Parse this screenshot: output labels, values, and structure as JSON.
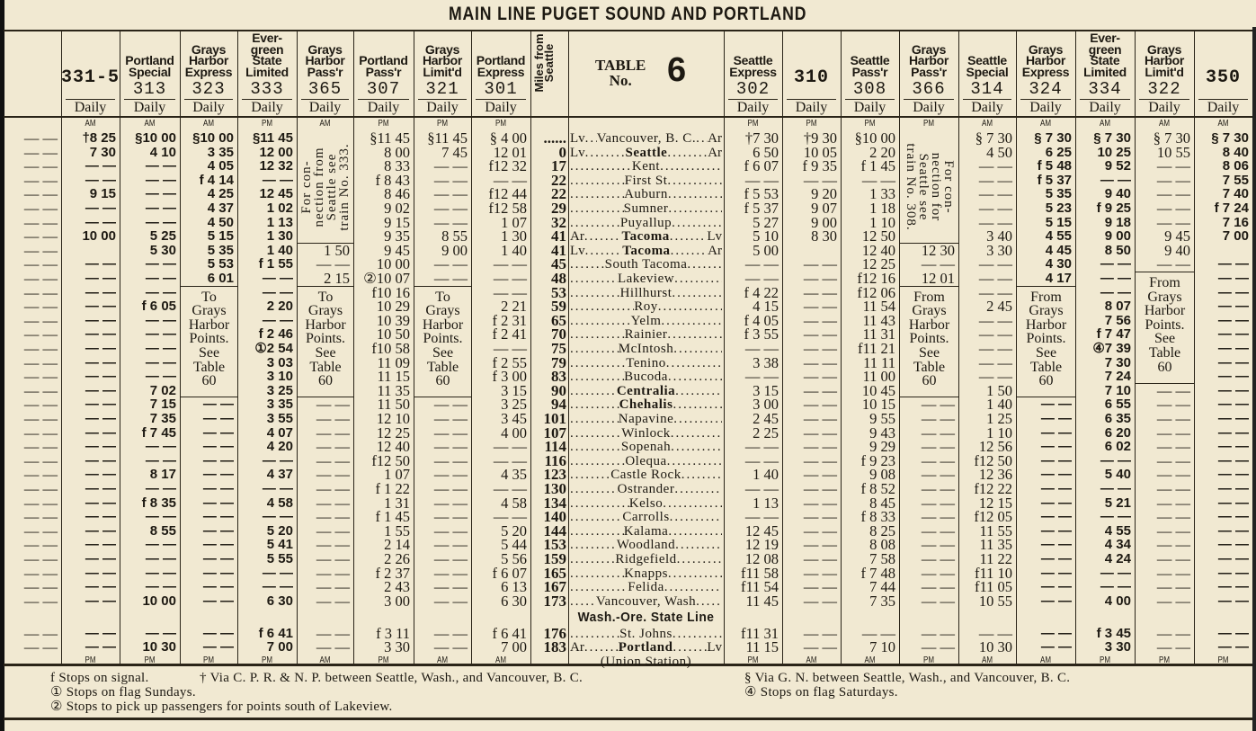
{
  "title": "MAIN LINE PUGET SOUND AND PORTLAND",
  "table_label": {
    "line1": "TABLE",
    "line2": "No.",
    "number": "6"
  },
  "miles_header": "Miles from Seattle",
  "left_trains": [
    {
      "number": "",
      "name_lines": [],
      "days": "",
      "top_marker": "",
      "bottom_marker": "",
      "cells": [
        "— —",
        "— —",
        "— —",
        "— —",
        "— —",
        "— —",
        "— —",
        "— —",
        "— —",
        "— —",
        "— —",
        "— —",
        "— —",
        "— —",
        "— —",
        "— —",
        "— —",
        "— —",
        "— —",
        "— —",
        "— —",
        "— —",
        "— —",
        "— —",
        "— —",
        "— —",
        "— —",
        "— —",
        "— —",
        "— —",
        "— —",
        "— —",
        "— —",
        "— —",
        "",
        "— —",
        "— —"
      ]
    },
    {
      "number": "331-5",
      "name_lines": [],
      "days": "Daily",
      "top_marker": "AM",
      "bottom_marker": "PM",
      "cells": [
        "†8 25",
        "7 30",
        "— —",
        "— —",
        "9 15",
        "— —",
        "— —",
        "10 00",
        "",
        "— —",
        "— —",
        "— —",
        "— —",
        "— —",
        "— —",
        "— —",
        "— —",
        "— —",
        "— —",
        "— —",
        "— —",
        "— —",
        "— —",
        "— —",
        "— —",
        "— —",
        "— —",
        "— —",
        "— —",
        "— —",
        "— —",
        "— —",
        "— —",
        "— —",
        "",
        "— —",
        "— —"
      ]
    },
    {
      "number": "313",
      "name_lines": [
        "Portland",
        "Special"
      ],
      "days": "Daily",
      "top_marker": "AM",
      "bottom_marker": "PM",
      "cells": [
        "§10 00",
        "4 10",
        "— —",
        "— —",
        "— —",
        "— —",
        "— —",
        "5 25",
        "5 30",
        "— —",
        "— —",
        "— —",
        "f 6 05",
        "— —",
        "— —",
        "— —",
        "— —",
        "— —",
        "7 02",
        "7 15",
        "7 35",
        "f 7 45",
        "— —",
        "— —",
        "8 17",
        "— —",
        "f 8 35",
        "— —",
        "8 55",
        "— —",
        "— —",
        "— —",
        "— —",
        "10 00",
        "",
        "— —",
        "10 30"
      ]
    },
    {
      "number": "323",
      "name_lines": [
        "Grays",
        "Harbor",
        "Express"
      ],
      "days": "Daily",
      "top_marker": "AM",
      "bottom_marker": "PM",
      "cells": [
        "§10 00",
        "3 35",
        "4 05",
        "f 4 14",
        "4 25",
        "4 37",
        "4 50",
        "5 15",
        "5 35",
        "5 53",
        "6 01",
        {
          "note": [
            "To",
            "Grays",
            "Harbor",
            "Points.",
            "See",
            "Table",
            "60"
          ]
        },
        null,
        null,
        null,
        null,
        null,
        null,
        null,
        "— —",
        "— —",
        "— —",
        "— —",
        "— —",
        "— —",
        "— —",
        "— —",
        "— —",
        "— —",
        "— —",
        "— —",
        "— —",
        "— —",
        "— —",
        "",
        "— —",
        "— —"
      ]
    },
    {
      "number": "333",
      "name_lines": [
        "Ever-",
        "green",
        "State",
        "Limited"
      ],
      "days": "Daily",
      "top_marker": "PM",
      "bottom_marker": "PM",
      "cells": [
        "§11 45",
        "12 00",
        "12 32",
        "— —",
        "12 45",
        "1 02",
        "1 13",
        "1 30",
        "1 40",
        "f 1 55",
        "— —",
        "— —",
        "2 20",
        "— —",
        "f 2 46",
        "①2 54",
        "3 03",
        "3 10",
        "3 25",
        "3 35",
        "3 55",
        "4 07",
        "4 20",
        "— —",
        "4 37",
        "— —",
        "4 58",
        "— —",
        "5 20",
        "5 41",
        "5 55",
        "— —",
        "— —",
        "6 30",
        "",
        "f 6 41",
        "7 00"
      ]
    },
    {
      "number": "365",
      "name_lines": [
        "Grays",
        "Harbor",
        "Pass'r"
      ],
      "days": "Daily",
      "top_marker": "AM",
      "bottom_marker": "AM",
      "cells": [
        {
          "vnote": [
            "For con-",
            "nection from",
            "Seattle see",
            "train No. 333."
          ]
        },
        null,
        null,
        null,
        null,
        null,
        null,
        null,
        "1 50",
        "— —",
        "2 15",
        {
          "note": [
            "To",
            "Grays",
            "Harbor",
            "Points.",
            "See",
            "Table",
            "60"
          ]
        },
        null,
        null,
        null,
        null,
        null,
        null,
        null,
        "— —",
        "— —",
        "— —",
        "— —",
        "— —",
        "— —",
        "— —",
        "— —",
        "— —",
        "— —",
        "— —",
        "— —",
        "— —",
        "— —",
        "— —",
        "",
        "— —",
        "— —"
      ]
    },
    {
      "number": "307",
      "name_lines": [
        "Portland",
        "Pass'r"
      ],
      "days": "Daily",
      "top_marker": "PM",
      "bottom_marker": "PM",
      "cells": [
        "§11 45",
        "8 00",
        "8 33",
        "f 8 43",
        "8 46",
        "9 02",
        "9 15",
        "9 35",
        "9 45",
        "10 00",
        "②10 07",
        "f10 16",
        "10 29",
        "10 39",
        "10 50",
        "f10 58",
        "11 09",
        "11 15",
        "11 35",
        "11 50",
        "12 10",
        "12 25",
        "12 40",
        "f12 50",
        "1 07",
        "f 1 22",
        "1 31",
        "f 1 45",
        "1 55",
        "2 14",
        "2 26",
        "f 2 37",
        "2 43",
        "3 00",
        "",
        "f 3 11",
        "3 30"
      ]
    },
    {
      "number": "321",
      "name_lines": [
        "Grays",
        "Harbor",
        "Limit'd"
      ],
      "days": "Daily",
      "top_marker": "PM",
      "bottom_marker": "AM",
      "cells": [
        "§11 45",
        "7 45",
        "— —",
        "— —",
        "— —",
        "— —",
        "— —",
        "8 55",
        "9 00",
        "— —",
        "— —",
        {
          "note": [
            "To",
            "Grays",
            "Harbor",
            "Points.",
            "See",
            "Table",
            "60"
          ]
        },
        null,
        null,
        null,
        null,
        null,
        null,
        null,
        "— —",
        "— —",
        "— —",
        "— —",
        "— —",
        "— —",
        "— —",
        "— —",
        "— —",
        "— —",
        "— —",
        "— —",
        "— —",
        "— —",
        "— —",
        "",
        "— —",
        "— —"
      ]
    },
    {
      "number": "301",
      "name_lines": [
        "Portland",
        "Express"
      ],
      "days": "Daily",
      "top_marker": "PM",
      "bottom_marker": "AM",
      "cells": [
        "§ 4 00",
        "12 01",
        "f12 32",
        "— —",
        "f12 44",
        "f12 58",
        "1 07",
        "1 30",
        "1 40",
        "— —",
        "— —",
        "— —",
        "2 21",
        "f 2 31",
        "f 2 41",
        "— —",
        "f 2 55",
        "f 3 00",
        "3 15",
        "3 25",
        "3 45",
        "4 00",
        "— —",
        "— —",
        "4 35",
        "— —",
        "4 58",
        "— —",
        "5 20",
        "5 44",
        "5 56",
        "f 6 07",
        "6 13",
        "6 30",
        "",
        "f 6 41",
        "7 00"
      ]
    }
  ],
  "right_trains": [
    {
      "number": "302",
      "name_lines": [
        "Seattle",
        "Express"
      ],
      "days": "Daily",
      "top_marker": "PM",
      "bottom_marker": "PM",
      "cells": [
        "†7 30",
        "6 50",
        "f 6 07",
        "— —",
        "f 5 53",
        "f 5 37",
        "5 27",
        "5 10",
        "5 00",
        "— —",
        "— —",
        "f 4 22",
        "4 15",
        "f 4 05",
        "f 3 55",
        "— —",
        "3 38",
        "— —",
        "3 15",
        "3 00",
        "2 45",
        "2 25",
        "— —",
        "— —",
        "1 40",
        "— —",
        "1 13",
        "— —",
        "12 45",
        "12 19",
        "12 08",
        "f11 58",
        "f11 54",
        "11 45",
        "",
        "f11 31",
        "11 15"
      ]
    },
    {
      "number": "310",
      "name_lines": [],
      "days": "Daily",
      "top_marker": "PM",
      "bottom_marker": "AM",
      "cells": [
        "†9 30",
        "10 05",
        "f 9 35",
        "— —",
        "9 20",
        "9 07",
        "9 00",
        "8 30",
        "",
        "— —",
        "— —",
        "— —",
        "— —",
        "— —",
        "— —",
        "— —",
        "— —",
        "— —",
        "— —",
        "— —",
        "— —",
        "— —",
        "— —",
        "— —",
        "— —",
        "— —",
        "— —",
        "— —",
        "— —",
        "— —",
        "— —",
        "— —",
        "— —",
        "— —",
        "",
        "— —",
        "— —"
      ]
    },
    {
      "number": "308",
      "name_lines": [
        "Seattle",
        "Pass'r"
      ],
      "days": "Daily",
      "top_marker": "PM",
      "bottom_marker": "AM",
      "cells": [
        "§10 00",
        "2 20",
        "f 1 45",
        "— —",
        "1 33",
        "1 18",
        "1 10",
        "12 50",
        "12 40",
        "12 25",
        "f12 16",
        "f12 06",
        "11 54",
        "11 43",
        "11 31",
        "f11 21",
        "11 11",
        "11 00",
        "10 45",
        "10 15",
        "9 55",
        "9 43",
        "9 29",
        "f 9 23",
        "9 08",
        "f 8 52",
        "8 45",
        "f 8 33",
        "8 25",
        "8 08",
        "7 58",
        "f 7 48",
        "7 44",
        "7 35",
        "",
        "— —",
        "7 10"
      ]
    },
    {
      "number": "366",
      "name_lines": [
        "Grays",
        "Harbor",
        "Pass'r"
      ],
      "days": "Daily",
      "top_marker": "PM",
      "bottom_marker": "PM",
      "cells": [
        {
          "vnote": [
            "For con-",
            "nection for",
            "Seattle see",
            "train No. 308."
          ]
        },
        null,
        null,
        null,
        null,
        null,
        null,
        null,
        "12 30",
        "— —",
        "12 01",
        {
          "note": [
            "From",
            "Grays",
            "Harbor",
            "Points.",
            "See",
            "Table",
            "60"
          ]
        },
        null,
        null,
        null,
        null,
        null,
        null,
        null,
        "— —",
        "— —",
        "— —",
        "— —",
        "— —",
        "— —",
        "— —",
        "— —",
        "— —",
        "— —",
        "— —",
        "— —",
        "— —",
        "— —",
        "— —",
        "",
        "— —",
        "— —"
      ]
    },
    {
      "number": "314",
      "name_lines": [
        "Seattle",
        "Special"
      ],
      "days": "Daily",
      "top_marker": "AM",
      "bottom_marker": "AM",
      "cells": [
        "§ 7 30",
        "4 50",
        "— —",
        "— —",
        "— —",
        "— —",
        "— —",
        "3 40",
        "3 30",
        "— —",
        "— —",
        "— —",
        "2 45",
        "— —",
        "— —",
        "— —",
        "— —",
        "— —",
        "1 50",
        "1 40",
        "1 25",
        "1 10",
        "12 56",
        "f12 50",
        "12 36",
        "f12 22",
        "12 15",
        "f12 05",
        "11 55",
        "11 35",
        "11 22",
        "f11 10",
        "f11 05",
        "10 55",
        "",
        "— —",
        "10 30"
      ]
    },
    {
      "number": "324",
      "name_lines": [
        "Grays",
        "Harbor",
        "Express"
      ],
      "days": "Daily",
      "top_marker": "AM",
      "bottom_marker": "AM",
      "cells": [
        "§ 7 30",
        "6 25",
        "f 5 48",
        "f 5 37",
        "5 35",
        "5 23",
        "5 15",
        "4 55",
        "4 45",
        "4 30",
        "4 17",
        {
          "note": [
            "From",
            "Grays",
            "Harbor",
            "Points.",
            "See",
            "Table",
            "60"
          ]
        },
        null,
        null,
        null,
        null,
        null,
        null,
        null,
        "— —",
        "— —",
        "— —",
        "— —",
        "— —",
        "— —",
        "— —",
        "— —",
        "— —",
        "— —",
        "— —",
        "— —",
        "— —",
        "— —",
        "— —",
        "",
        "— —",
        "— —"
      ]
    },
    {
      "number": "334",
      "name_lines": [
        "Ever-",
        "green",
        "State",
        "Limited"
      ],
      "days": "Daily",
      "top_marker": "AM",
      "bottom_marker": "PM",
      "cells": [
        "§ 7 30",
        "10 25",
        "9 52",
        "— —",
        "9 40",
        "f 9 25",
        "9 18",
        "9 00",
        "8 50",
        "— —",
        "— —",
        "— —",
        "8 07",
        "7 56",
        "f 7 47",
        "④7 39",
        "7 30",
        "7 24",
        "7 10",
        "6 55",
        "6 35",
        "6 20",
        "6 02",
        "— —",
        "5 40",
        "— —",
        "5 21",
        "— —",
        "4 55",
        "4 34",
        "4 24",
        "— —",
        "— —",
        "4 00",
        "",
        "f 3 45",
        "3 30"
      ]
    },
    {
      "number": "322",
      "name_lines": [
        "Grays",
        "Harbor",
        "Limit'd"
      ],
      "days": "Daily",
      "top_marker": "AM",
      "bottom_marker": "PM",
      "cells": [
        "§ 7 30",
        "10 55",
        "— —",
        "— —",
        "— —",
        "— —",
        "— —",
        "9 45",
        "9 40",
        "— —",
        {
          "note": [
            "From",
            "Grays",
            "Harbor",
            "Points.",
            "See",
            "Table",
            "60"
          ]
        },
        null,
        null,
        null,
        null,
        null,
        null,
        null,
        "— —",
        "— —",
        "— —",
        "— —",
        "— —",
        "— —",
        "— —",
        "— —",
        "— —",
        "— —",
        "— —",
        "— —",
        "— —",
        "— —",
        "— —",
        "— —",
        "",
        "— —",
        "— —"
      ]
    },
    {
      "number": "350",
      "name_lines": [],
      "days": "Daily",
      "top_marker": "AM",
      "bottom_marker": "PM",
      "cells": [
        "§ 7 30",
        "8 40",
        "8 06",
        "7 55",
        "7 40",
        "f 7 24",
        "7 16",
        "7 00",
        "",
        "— —",
        "— —",
        "— —",
        "— —",
        "— —",
        "— —",
        "— —",
        "— —",
        "— —",
        "— —",
        "— —",
        "— —",
        "— —",
        "— —",
        "— —",
        "— —",
        "— —",
        "— —",
        "— —",
        "— —",
        "— —",
        "— —",
        "— —",
        "— —",
        "— —",
        "",
        "— —",
        "— —"
      ]
    }
  ],
  "stations": [
    {
      "mi": "......",
      "left": "Lv",
      "name": "Vancouver, B. C.",
      "right": "Ar"
    },
    {
      "mi": "0",
      "left": "Lv",
      "name": "Seattle",
      "right": "Ar",
      "bold": true
    },
    {
      "mi": "17",
      "left": "",
      "name": "Kent",
      "right": ""
    },
    {
      "mi": "22",
      "left": "",
      "name": "First St",
      "right": ""
    },
    {
      "mi": "22",
      "left": "",
      "name": "Auburn",
      "right": ""
    },
    {
      "mi": "29",
      "left": "",
      "name": "Sumner",
      "right": ""
    },
    {
      "mi": "32",
      "left": "",
      "name": "Puyallup",
      "right": ""
    },
    {
      "mi": "41",
      "left": "Ar",
      "name": "Tacoma",
      "right": "Lv",
      "bold": true
    },
    {
      "mi": "41",
      "left": "Lv",
      "name": "Tacoma",
      "right": "Ar",
      "bold": true
    },
    {
      "mi": "45",
      "left": "",
      "name": "South Tacoma",
      "right": ""
    },
    {
      "mi": "48",
      "left": "",
      "name": "Lakeview",
      "right": ""
    },
    {
      "mi": "53",
      "left": "",
      "name": "Hillhurst",
      "right": ""
    },
    {
      "mi": "59",
      "left": "",
      "name": "Roy",
      "right": ""
    },
    {
      "mi": "65",
      "left": "",
      "name": "Yelm",
      "right": ""
    },
    {
      "mi": "70",
      "left": "",
      "name": "Rainier",
      "right": ""
    },
    {
      "mi": "75",
      "left": "",
      "name": "McIntosh",
      "right": ""
    },
    {
      "mi": "79",
      "left": "",
      "name": "Tenino",
      "right": ""
    },
    {
      "mi": "83",
      "left": "",
      "name": "Bucoda",
      "right": ""
    },
    {
      "mi": "90",
      "left": "",
      "name": "Centralia",
      "right": "",
      "bold": true
    },
    {
      "mi": "94",
      "left": "",
      "name": "Chehalis",
      "right": "",
      "bold": true
    },
    {
      "mi": "101",
      "left": "",
      "name": "Napavine",
      "right": ""
    },
    {
      "mi": "107",
      "left": "",
      "name": "Winlock",
      "right": ""
    },
    {
      "mi": "114",
      "left": "",
      "name": "Sopenah",
      "right": ""
    },
    {
      "mi": "116",
      "left": "",
      "name": "Olequa",
      "right": ""
    },
    {
      "mi": "123",
      "left": "",
      "name": "Castle Rock",
      "right": ""
    },
    {
      "mi": "130",
      "left": "",
      "name": "Ostrander",
      "right": ""
    },
    {
      "mi": "134",
      "left": "",
      "name": "Kelso",
      "right": ""
    },
    {
      "mi": "140",
      "left": "",
      "name": "Carrolls",
      "right": ""
    },
    {
      "mi": "144",
      "left": "",
      "name": "Kalama",
      "right": ""
    },
    {
      "mi": "153",
      "left": "",
      "name": "Woodland",
      "right": ""
    },
    {
      "mi": "159",
      "left": "",
      "name": "Ridgefield",
      "right": ""
    },
    {
      "mi": "165",
      "left": "",
      "name": "Knapps",
      "right": ""
    },
    {
      "mi": "167",
      "left": "",
      "name": "Felida",
      "right": ""
    },
    {
      "mi": "173",
      "left": "",
      "name": "Vancouver, Wash",
      "right": ""
    },
    {
      "mi": "",
      "left": "",
      "name": "Wash.-Ore. State Line",
      "right": "",
      "full": true
    },
    {
      "mi": "176",
      "left": "",
      "name": "St. Johns",
      "right": ""
    },
    {
      "mi": "183",
      "left": "Ar",
      "name": "Portland",
      "right": "Lv",
      "bold": true
    },
    {
      "mi": "",
      "left": "",
      "name": "(Union Station)",
      "right": "",
      "center": true
    }
  ],
  "footnotes": {
    "f": "f Stops on signal.",
    "dagger": "† Via C. P. R. & N. P. between Seattle, Wash., and Vancouver, B. C.",
    "one": "① Stops on flag Sundays.",
    "two": "② Stops to pick up passengers for points south of Lakeview.",
    "section": "§ Via G. N. between Seattle, Wash., and Vancouver, B. C.",
    "four": "④ Stops on flag Saturdays."
  }
}
